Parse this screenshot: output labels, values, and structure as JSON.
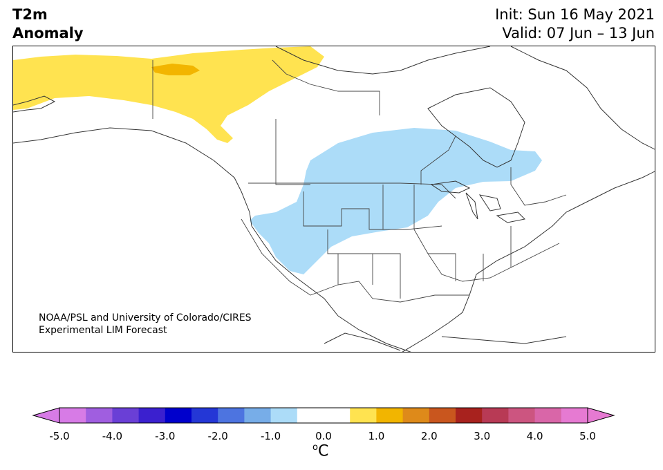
{
  "title": {
    "variable": "T2m",
    "subtitle": "Anomaly",
    "init": "Init: Sun 16 May 2021",
    "valid": "Valid: 07 Jun – 13 Jun"
  },
  "credit": {
    "line1": "NOAA/PSL and University of Colorado/CIRES",
    "line2": "Experimental LIM Forecast"
  },
  "colorbar": {
    "ticks": [
      "-5.0",
      "-4.0",
      "-3.0",
      "-2.0",
      "-1.0",
      "0.0",
      "1.0",
      "2.0",
      "3.0",
      "4.0",
      "5.0"
    ],
    "units_base": "C",
    "units_sup": "o",
    "colors": [
      "#d77be6",
      "#a05ee0",
      "#6a3fd6",
      "#3b20cf",
      "#0000cc",
      "#2437d6",
      "#4d74e0",
      "#77ade8",
      "#acdcf8",
      "#ffffff",
      "#ffffff",
      "#ffe350",
      "#f2b500",
      "#de8a1a",
      "#c9561e",
      "#a8221e",
      "#b83a55",
      "#cc5580",
      "#d966a8",
      "#e67ad2"
    ]
  },
  "anomaly_regions": [
    {
      "name": "alaska-yukon warm anomaly",
      "level": "0.5 to 1.0",
      "color": "#ffe350"
    },
    {
      "name": "alaska-yukon warm core",
      "level": "1.0 to 1.5",
      "color": "#f2b500"
    },
    {
      "name": "central north america cool anomaly",
      "level": "-1.0 to -0.5",
      "color": "#acdcf8"
    }
  ]
}
